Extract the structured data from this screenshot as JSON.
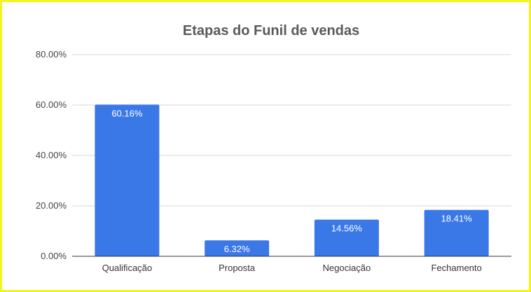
{
  "chart_data": {
    "type": "bar",
    "title": "Etapas do Funil de vendas",
    "xlabel": "",
    "ylabel": "",
    "categories": [
      "Qualificação",
      "Proposta",
      "Negociação",
      "Fechamento"
    ],
    "values": [
      60.16,
      6.32,
      14.56,
      18.41
    ],
    "data_labels": [
      "60.16%",
      "6.32%",
      "14.56%",
      "18.41%"
    ],
    "ylim": [
      0,
      80
    ],
    "y_ticks": [
      0,
      20,
      40,
      60,
      80
    ],
    "y_tick_labels": [
      "0.00%",
      "20.00%",
      "40.00%",
      "60.00%",
      "80.00%"
    ],
    "grid": true,
    "legend": "none",
    "colors": {
      "bar": "#3b78e7",
      "grid": "#d9d9d9",
      "axis": "#333333",
      "frame": "#f7f31c"
    }
  }
}
